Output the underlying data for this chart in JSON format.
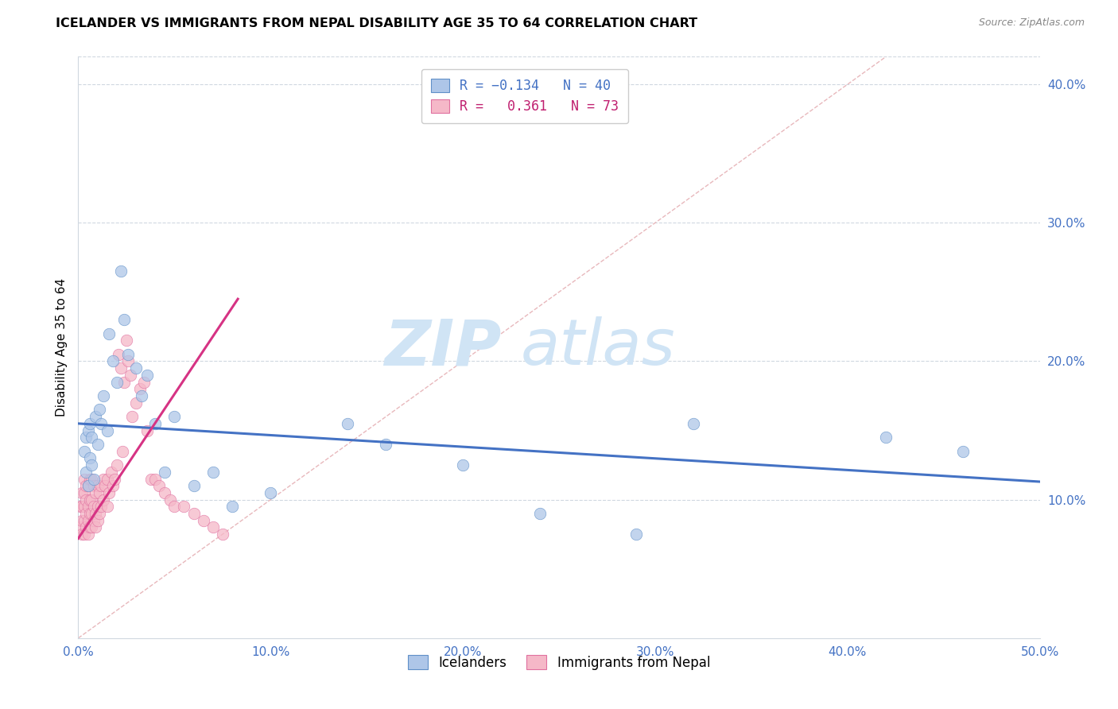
{
  "title": "ICELANDER VS IMMIGRANTS FROM NEPAL DISABILITY AGE 35 TO 64 CORRELATION CHART",
  "source": "Source: ZipAtlas.com",
  "ylabel": "Disability Age 35 to 64",
  "xlim": [
    0.0,
    0.5
  ],
  "ylim": [
    0.0,
    0.42
  ],
  "x_ticks": [
    0.0,
    0.1,
    0.2,
    0.3,
    0.4,
    0.5
  ],
  "x_tick_labels": [
    "0.0%",
    "10.0%",
    "20.0%",
    "30.0%",
    "40.0%",
    "50.0%"
  ],
  "y_ticks_right": [
    0.1,
    0.2,
    0.3,
    0.4
  ],
  "y_tick_labels_right": [
    "10.0%",
    "20.0%",
    "30.0%",
    "40.0%"
  ],
  "color_blue": "#aec6e8",
  "color_pink": "#f5b8c8",
  "line_color_blue": "#4472c4",
  "line_color_pink": "#d63384",
  "diag_line_color": "#e8b4b8",
  "watermark_zip": "ZIP",
  "watermark_atlas": "atlas",
  "icelanders_x": [
    0.003,
    0.004,
    0.004,
    0.005,
    0.005,
    0.006,
    0.006,
    0.007,
    0.007,
    0.008,
    0.009,
    0.01,
    0.011,
    0.012,
    0.013,
    0.015,
    0.016,
    0.018,
    0.02,
    0.022,
    0.024,
    0.026,
    0.03,
    0.033,
    0.036,
    0.04,
    0.045,
    0.05,
    0.06,
    0.07,
    0.08,
    0.1,
    0.14,
    0.16,
    0.2,
    0.24,
    0.29,
    0.32,
    0.42,
    0.46
  ],
  "icelanders_y": [
    0.135,
    0.12,
    0.145,
    0.11,
    0.15,
    0.13,
    0.155,
    0.125,
    0.145,
    0.115,
    0.16,
    0.14,
    0.165,
    0.155,
    0.175,
    0.15,
    0.22,
    0.2,
    0.185,
    0.265,
    0.23,
    0.205,
    0.195,
    0.175,
    0.19,
    0.155,
    0.12,
    0.16,
    0.11,
    0.12,
    0.095,
    0.105,
    0.155,
    0.14,
    0.125,
    0.09,
    0.075,
    0.155,
    0.145,
    0.135
  ],
  "nepal_x": [
    0.001,
    0.001,
    0.002,
    0.002,
    0.002,
    0.002,
    0.003,
    0.003,
    0.003,
    0.003,
    0.003,
    0.004,
    0.004,
    0.004,
    0.004,
    0.005,
    0.005,
    0.005,
    0.005,
    0.006,
    0.006,
    0.006,
    0.006,
    0.007,
    0.007,
    0.007,
    0.007,
    0.008,
    0.008,
    0.008,
    0.009,
    0.009,
    0.009,
    0.01,
    0.01,
    0.01,
    0.011,
    0.011,
    0.012,
    0.012,
    0.013,
    0.013,
    0.014,
    0.015,
    0.015,
    0.016,
    0.017,
    0.018,
    0.019,
    0.02,
    0.021,
    0.022,
    0.023,
    0.024,
    0.025,
    0.026,
    0.027,
    0.028,
    0.03,
    0.032,
    0.034,
    0.036,
    0.038,
    0.04,
    0.042,
    0.045,
    0.048,
    0.05,
    0.055,
    0.06,
    0.065,
    0.07,
    0.075
  ],
  "nepal_y": [
    0.08,
    0.095,
    0.075,
    0.085,
    0.095,
    0.105,
    0.075,
    0.085,
    0.095,
    0.105,
    0.115,
    0.08,
    0.09,
    0.1,
    0.11,
    0.075,
    0.085,
    0.095,
    0.11,
    0.08,
    0.09,
    0.1,
    0.115,
    0.08,
    0.09,
    0.1,
    0.115,
    0.085,
    0.095,
    0.11,
    0.08,
    0.09,
    0.105,
    0.085,
    0.095,
    0.11,
    0.09,
    0.105,
    0.095,
    0.11,
    0.1,
    0.115,
    0.11,
    0.095,
    0.115,
    0.105,
    0.12,
    0.11,
    0.115,
    0.125,
    0.205,
    0.195,
    0.135,
    0.185,
    0.215,
    0.2,
    0.19,
    0.16,
    0.17,
    0.18,
    0.185,
    0.15,
    0.115,
    0.115,
    0.11,
    0.105,
    0.1,
    0.095,
    0.095,
    0.09,
    0.085,
    0.08,
    0.075
  ],
  "blue_line_x": [
    0.0,
    0.5
  ],
  "blue_line_y": [
    0.155,
    0.113
  ],
  "pink_line_x": [
    0.0,
    0.083
  ],
  "pink_line_y": [
    0.072,
    0.245
  ]
}
